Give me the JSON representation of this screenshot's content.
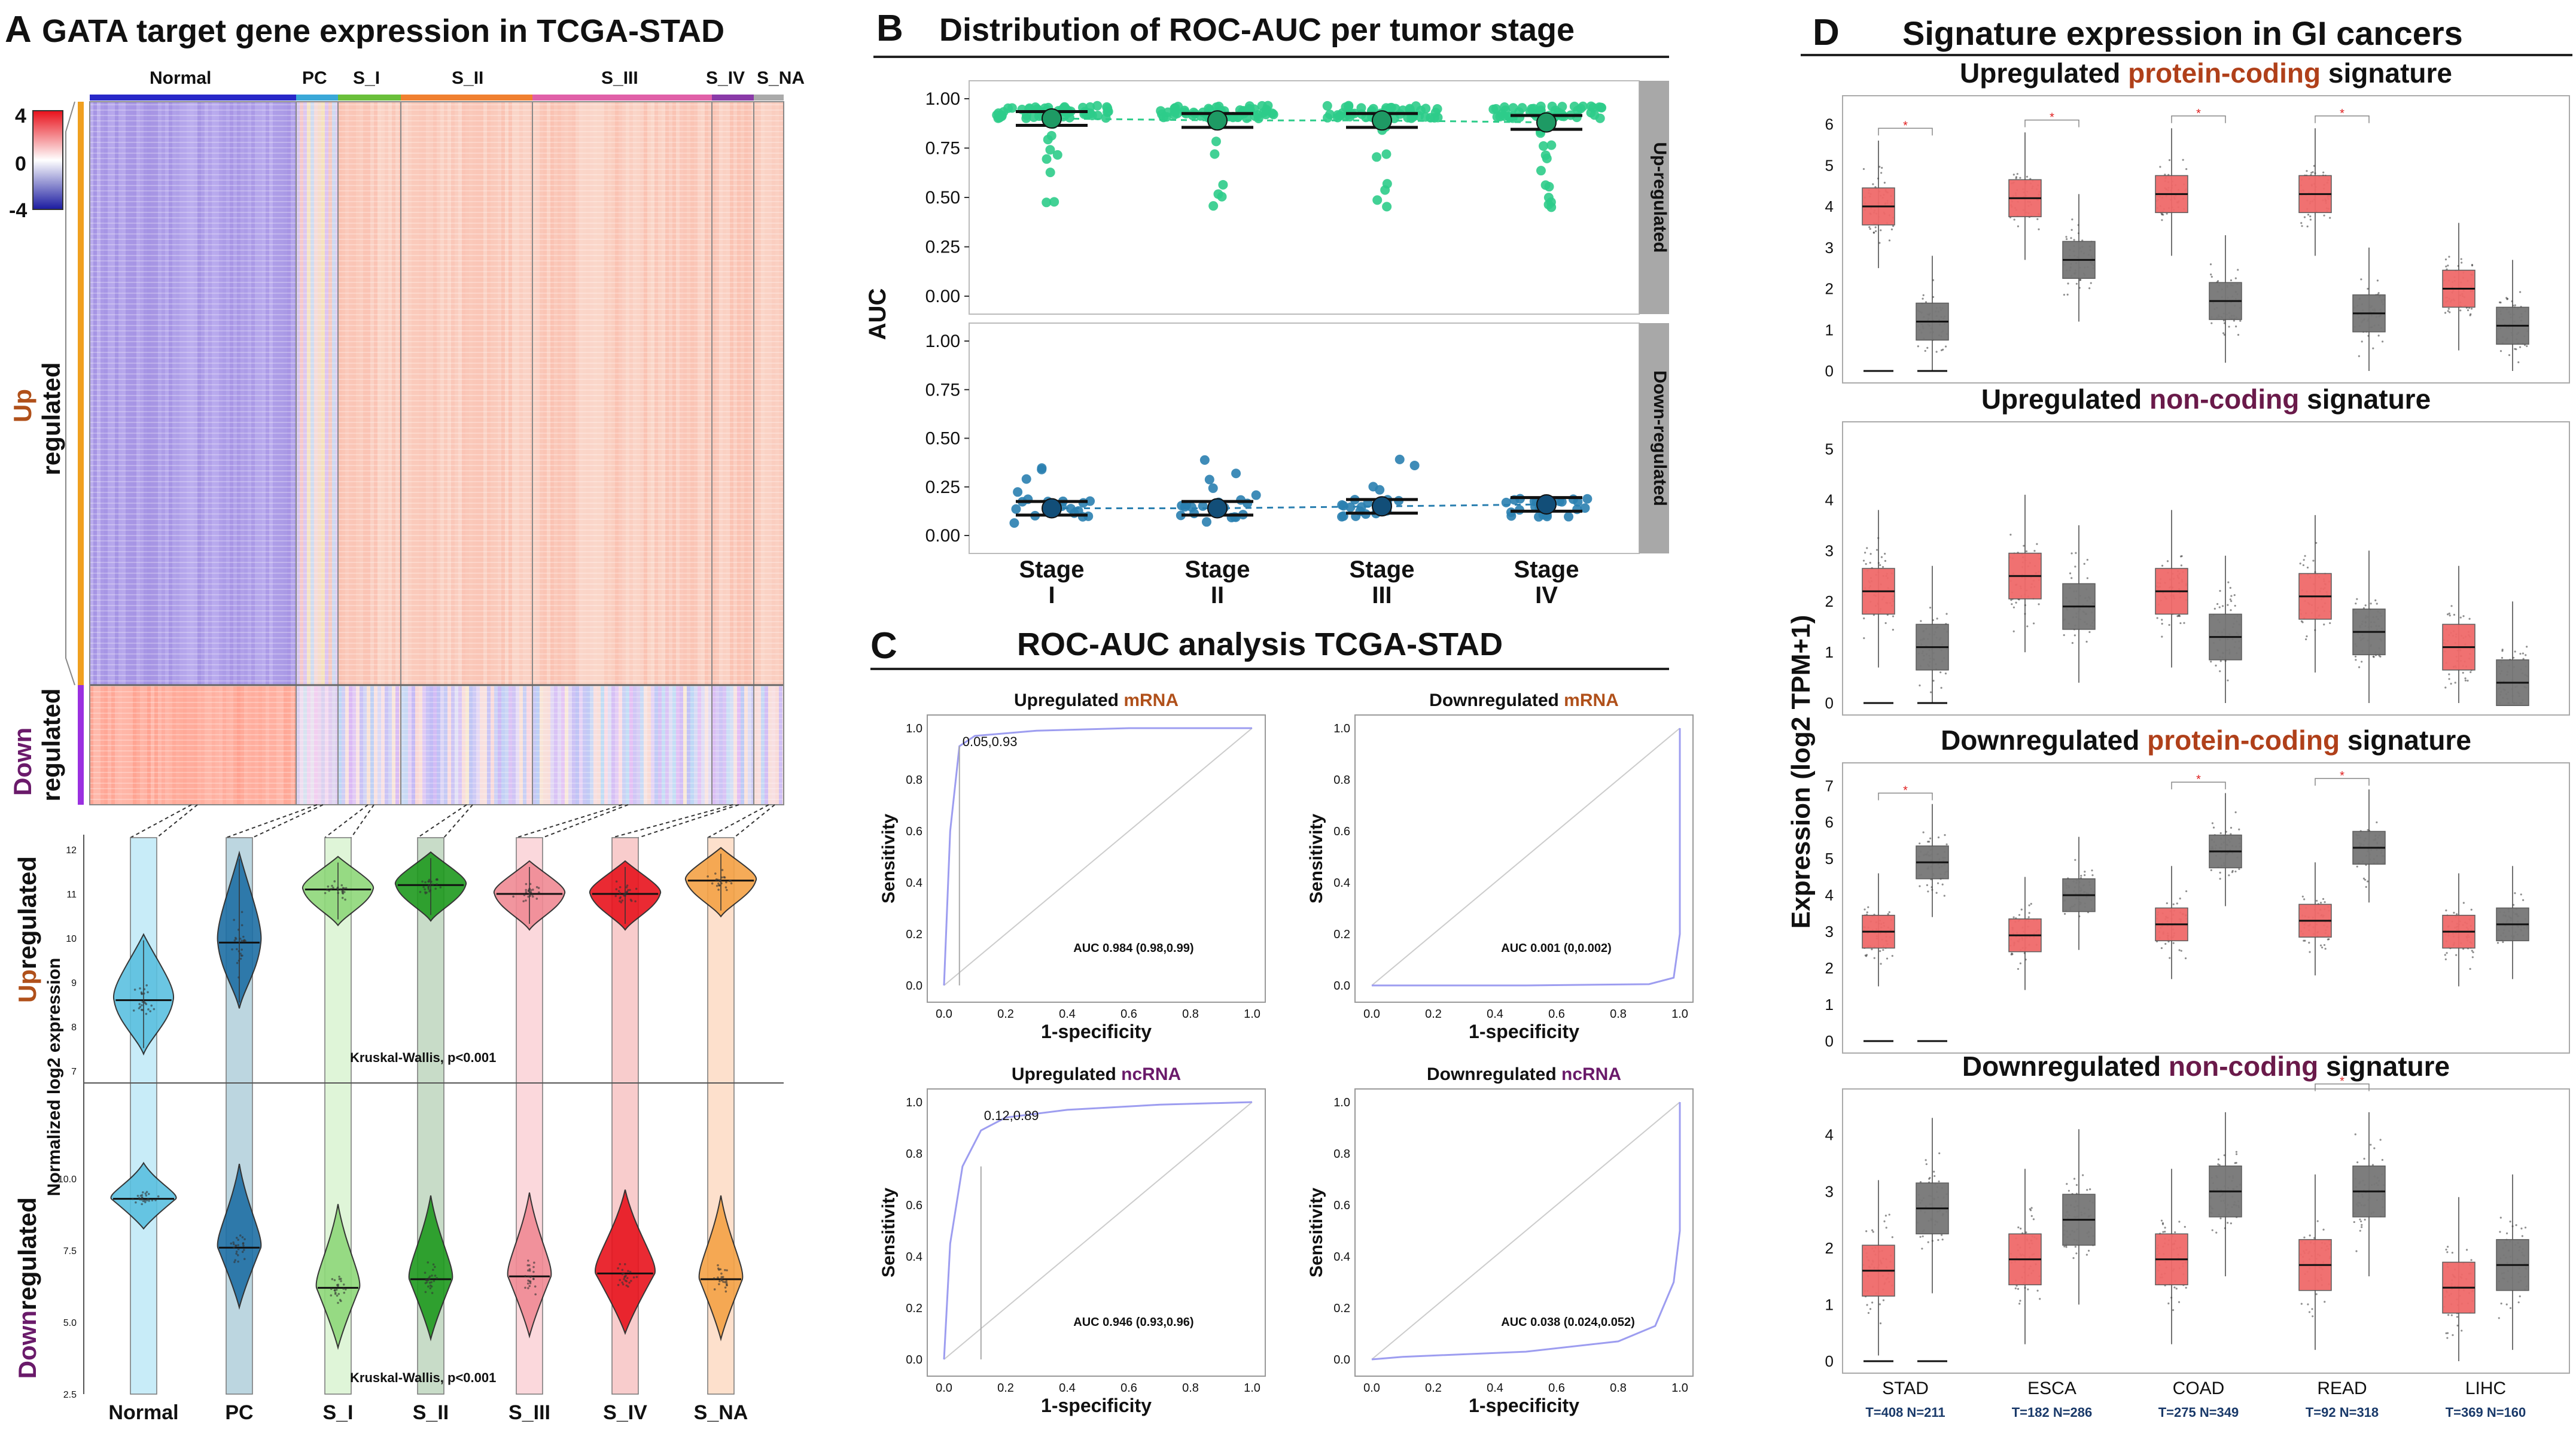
{
  "panelA": {
    "letter": "A",
    "title": "GATA target gene expression in TCGA-STAD",
    "legend_ticks": [
      "4",
      "0",
      "-4"
    ],
    "groups": [
      "Normal",
      "PC",
      "S_I",
      "S_II",
      "S_III",
      "S_IV",
      "S_NA"
    ],
    "row_labels": {
      "up_colored": "Up",
      "up_rest": "regulated",
      "down_colored": "Down",
      "down_rest": "regulated"
    },
    "violin_ylabel": "Normalized log2 expression",
    "violin_up_label": {
      "colored": "Up",
      "rest": "regulated"
    },
    "violin_down_label": {
      "colored": "Down",
      "rest": "regulated"
    },
    "kw_up": "Kruskal-Wallis, p<0.001",
    "kw_down": "Kruskal-Wallis, p<0.001",
    "group_colors": [
      "#5bc0e0",
      "#1f6fa5",
      "#8fd87a",
      "#1f9a1f",
      "#f08a94",
      "#e8141e",
      "#f5a346"
    ],
    "y_ticks_up": [
      "12",
      "11",
      "10",
      "9",
      "8",
      "7"
    ],
    "y_ticks_down": [
      "10.0",
      "7.5",
      "5.0",
      "2.5"
    ]
  },
  "panelB": {
    "letter": "B",
    "title": "Distribution of ROC-AUC per tumor stage",
    "ylabel": "AUC",
    "facets": [
      "Up-regulated",
      "Down-regulated"
    ],
    "stages": [
      [
        "Stage",
        "I"
      ],
      [
        "Stage",
        "II"
      ],
      [
        "Stage",
        "III"
      ],
      [
        "Stage",
        "IV"
      ]
    ],
    "y_ticks": [
      "1.00",
      "0.75",
      "0.50",
      "0.25",
      "0.00"
    ]
  },
  "panelC": {
    "letter": "C",
    "title": "ROC-AUC analysis TCGA-STAD",
    "xlabel": "1-specificity",
    "ylabel": "Sensitivity",
    "ticks": [
      "0.0",
      "0.2",
      "0.4",
      "0.6",
      "0.8",
      "1.0"
    ],
    "plots": [
      {
        "title_a": "Upregulated ",
        "title_b": "mRNA",
        "auc": "AUC 0.984 (0.98,0.99)",
        "cut": "0.05,0.93",
        "color_b": "#b0501a"
      },
      {
        "title_a": "Downregulated ",
        "title_b": "mRNA",
        "auc": "AUC 0.001 (0,0.002)",
        "cut": "",
        "color_b": "#b0501a"
      },
      {
        "title_a": "Upregulated ",
        "title_b": "ncRNA",
        "auc": "AUC 0.946 (0.93,0.96)",
        "cut": "0.12,0.89",
        "color_b": "#6a1a6a"
      },
      {
        "title_a": "Downregulated ",
        "title_b": "ncRNA",
        "auc": "AUC 0.038 (0.024,0.052)",
        "cut": "",
        "color_b": "#6a1a6a"
      }
    ]
  },
  "panelD": {
    "letter": "D",
    "title": "Signature expression in GI cancers",
    "ylabel": "Expression (log2 TPM+1)",
    "cancers": [
      "STAD",
      "ESCA",
      "COAD",
      "READ",
      "LIHC"
    ],
    "counts": [
      "T=408 N=211",
      "T=182 N=286",
      "T=275 N=349",
      "T=92 N=318",
      "T=369 N=160"
    ],
    "star": "*",
    "subplots": [
      {
        "t1": "Upregulated ",
        "t2": "protein-coding",
        "t3": " signature",
        "c2": "#b0401a",
        "ticks": [
          "6",
          "5",
          "4",
          "3",
          "2",
          "1",
          "0"
        ]
      },
      {
        "t1": "Upregulated ",
        "t2": "non-coding",
        "t3": " signature",
        "c2": "#6a1a4a",
        "ticks": [
          "5",
          "4",
          "3",
          "2",
          "1",
          "0"
        ]
      },
      {
        "t1": "Downregulated ",
        "t2": "protein-coding",
        "t3": " signature",
        "c2": "#b0401a",
        "ticks": [
          "7",
          "6",
          "5",
          "4",
          "3",
          "2",
          "1",
          "0"
        ]
      },
      {
        "t1": "Downregulated ",
        "t2": "non-coding",
        "t3": " signature",
        "c2": "#6a1a4a",
        "ticks": [
          "4",
          "3",
          "2",
          "1",
          "0"
        ]
      }
    ]
  },
  "chart_data": [
    {
      "type": "heatmap",
      "title": "GATA target gene expression in TCGA-STAD",
      "columns": [
        "Normal",
        "PC",
        "S_I",
        "S_II",
        "S_III",
        "S_IV",
        "S_NA"
      ],
      "rows": [
        "Up regulated",
        "Down regulated"
      ],
      "color_range": [
        -4,
        4
      ]
    },
    {
      "type": "scatter",
      "title": "Normalized log2 expression (violin)",
      "categories": [
        "Normal",
        "PC",
        "S_I",
        "S_II",
        "S_III",
        "S_IV",
        "S_NA"
      ],
      "series": [
        {
          "name": "Upregulated",
          "medians": [
            8.6,
            9.9,
            11.1,
            11.2,
            11.0,
            11.0,
            11.3
          ]
        },
        {
          "name": "Downregulated",
          "medians": [
            9.3,
            7.6,
            6.2,
            6.5,
            6.6,
            6.7,
            6.5
          ]
        }
      ]
    },
    {
      "type": "scatter",
      "title": "Distribution of ROC-AUC per tumor stage",
      "categories": [
        "Stage I",
        "Stage II",
        "Stage III",
        "Stage IV"
      ],
      "series": [
        {
          "name": "Up-regulated",
          "means": [
            0.9,
            0.89,
            0.89,
            0.88
          ]
        },
        {
          "name": "Down-regulated",
          "means": [
            0.14,
            0.14,
            0.15,
            0.16
          ]
        }
      ],
      "ylim": [
        0,
        1
      ]
    },
    {
      "type": "line",
      "title": "ROC-AUC analysis TCGA-STAD",
      "xlabel": "1-specificity",
      "ylabel": "Sensitivity",
      "series": [
        {
          "name": "Upregulated mRNA",
          "x": [
            0,
            0.02,
            0.05,
            0.1,
            0.3,
            0.6,
            1.0
          ],
          "y": [
            0,
            0.6,
            0.93,
            0.97,
            0.99,
            1.0,
            1.0
          ]
        },
        {
          "name": "Downregulated mRNA",
          "x": [
            0,
            0.5,
            0.9,
            0.98,
            1.0,
            1.0
          ],
          "y": [
            0,
            0.0,
            0.005,
            0.03,
            0.2,
            1.0
          ]
        },
        {
          "name": "Upregulated ncRNA",
          "x": [
            0,
            0.02,
            0.06,
            0.12,
            0.2,
            0.4,
            0.7,
            1.0
          ],
          "y": [
            0,
            0.45,
            0.75,
            0.89,
            0.94,
            0.97,
            0.99,
            1.0
          ]
        },
        {
          "name": "Downregulated ncRNA",
          "x": [
            0,
            0.1,
            0.5,
            0.8,
            0.92,
            0.98,
            1.0,
            1.0
          ],
          "y": [
            0,
            0.01,
            0.03,
            0.07,
            0.13,
            0.3,
            0.5,
            1.0
          ]
        }
      ]
    },
    {
      "type": "bar",
      "title": "Signature expression in GI cancers (box medians)",
      "categories": [
        "STAD",
        "ESCA",
        "COAD",
        "READ",
        "LIHC"
      ],
      "series": [
        {
          "name": "Upregulated protein-coding Tumor",
          "values": [
            4.0,
            4.2,
            4.3,
            4.3,
            2.0
          ]
        },
        {
          "name": "Upregulated protein-coding Normal",
          "values": [
            1.2,
            2.7,
            1.7,
            1.4,
            1.1
          ]
        },
        {
          "name": "Upregulated non-coding Tumor",
          "values": [
            2.2,
            2.5,
            2.2,
            2.1,
            1.1
          ]
        },
        {
          "name": "Upregulated non-coding Normal",
          "values": [
            1.1,
            1.9,
            1.3,
            1.4,
            0.4
          ]
        },
        {
          "name": "Downregulated protein-coding Tumor",
          "values": [
            3.0,
            2.9,
            3.2,
            3.3,
            3.0
          ]
        },
        {
          "name": "Downregulated protein-coding Normal",
          "values": [
            4.9,
            4.0,
            5.2,
            5.3,
            3.2
          ]
        },
        {
          "name": "Downregulated non-coding Tumor",
          "values": [
            1.6,
            1.8,
            1.8,
            1.7,
            1.3
          ]
        },
        {
          "name": "Downregulated non-coding Normal",
          "values": [
            2.7,
            2.5,
            3.0,
            3.0,
            1.7
          ]
        }
      ]
    }
  ]
}
